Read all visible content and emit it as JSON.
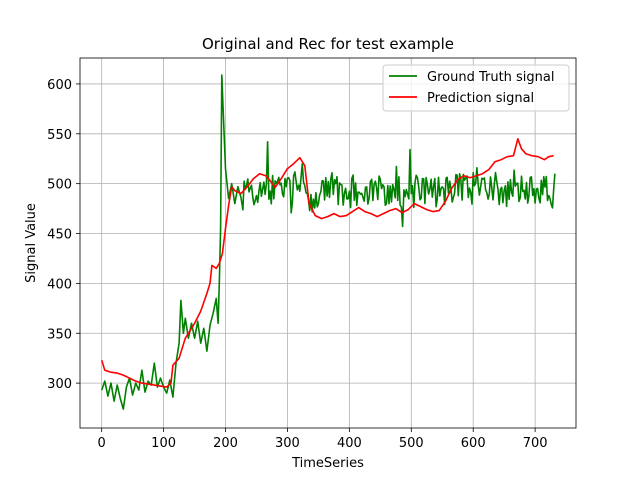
{
  "chart_data": {
    "type": "line",
    "title": "Original and Rec for test example",
    "xlabel": "TimeSeries",
    "ylabel": "Signal Value",
    "xlim": [
      -35,
      766
    ],
    "ylim": [
      255,
      626
    ],
    "xticks": [
      0,
      100,
      200,
      300,
      400,
      500,
      600,
      700
    ],
    "yticks": [
      300,
      350,
      400,
      450,
      500,
      550,
      600
    ],
    "grid": true,
    "legend_position": "top-right",
    "series": [
      {
        "name": "Ground Truth signal",
        "color": "#008000",
        "key_points": [
          [
            0,
            293
          ],
          [
            5,
            302
          ],
          [
            10,
            287
          ],
          [
            15,
            300
          ],
          [
            20,
            282
          ],
          [
            25,
            298
          ],
          [
            30,
            285
          ],
          [
            35,
            274
          ],
          [
            40,
            296
          ],
          [
            45,
            305
          ],
          [
            50,
            288
          ],
          [
            55,
            300
          ],
          [
            60,
            293
          ],
          [
            65,
            313
          ],
          [
            70,
            291
          ],
          [
            75,
            302
          ],
          [
            80,
            298
          ],
          [
            85,
            320
          ],
          [
            90,
            296
          ],
          [
            95,
            305
          ],
          [
            100,
            296
          ],
          [
            105,
            290
          ],
          [
            110,
            303
          ],
          [
            115,
            286
          ],
          [
            120,
            320
          ],
          [
            125,
            340
          ],
          [
            128,
            383
          ],
          [
            132,
            350
          ],
          [
            135,
            365
          ],
          [
            140,
            345
          ],
          [
            145,
            360
          ],
          [
            150,
            345
          ],
          [
            155,
            362
          ],
          [
            160,
            340
          ],
          [
            165,
            355
          ],
          [
            170,
            332
          ],
          [
            175,
            358
          ],
          [
            180,
            370
          ],
          [
            185,
            385
          ],
          [
            188,
            360
          ],
          [
            190,
            400
          ],
          [
            192,
            455
          ],
          [
            194,
            609
          ],
          [
            197,
            560
          ],
          [
            200,
            515
          ],
          [
            205,
            485
          ],
          [
            210,
            500
          ],
          [
            215,
            480
          ],
          [
            220,
            497
          ],
          [
            225,
            486
          ]
        ]
      },
      {
        "name": "Prediction signal",
        "color": "#ff0000",
        "key_points": [
          [
            0,
            323
          ],
          [
            5,
            313
          ],
          [
            15,
            311
          ],
          [
            25,
            310
          ],
          [
            35,
            308
          ],
          [
            45,
            305
          ],
          [
            55,
            302
          ],
          [
            65,
            300
          ],
          [
            75,
            299
          ],
          [
            85,
            298
          ],
          [
            95,
            297
          ],
          [
            105,
            296
          ],
          [
            112,
            300
          ],
          [
            115,
            318
          ],
          [
            125,
            325
          ],
          [
            130,
            335
          ],
          [
            135,
            345
          ],
          [
            140,
            350
          ],
          [
            150,
            360
          ],
          [
            160,
            372
          ],
          [
            170,
            390
          ],
          [
            175,
            400
          ],
          [
            178,
            418
          ],
          [
            185,
            415
          ],
          [
            190,
            420
          ],
          [
            195,
            430
          ],
          [
            200,
            455
          ],
          [
            205,
            478
          ],
          [
            210,
            497
          ],
          [
            215,
            493
          ]
        ]
      }
    ]
  }
}
